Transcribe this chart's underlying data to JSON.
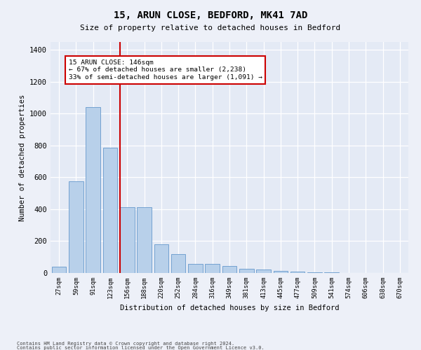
{
  "title": "15, ARUN CLOSE, BEDFORD, MK41 7AD",
  "subtitle": "Size of property relative to detached houses in Bedford",
  "xlabel": "Distribution of detached houses by size in Bedford",
  "ylabel": "Number of detached properties",
  "footnote1": "Contains HM Land Registry data © Crown copyright and database right 2024.",
  "footnote2": "Contains public sector information licensed under the Open Government Licence v3.0.",
  "annotation_line1": "15 ARUN CLOSE: 146sqm",
  "annotation_line2": "← 67% of detached houses are smaller (2,238)",
  "annotation_line3": "33% of semi-detached houses are larger (1,091) →",
  "bar_color": "#b8d0ea",
  "bar_edge_color": "#6699cc",
  "line_color": "#cc0000",
  "categories": [
    "27sqm",
    "59sqm",
    "91sqm",
    "123sqm",
    "156sqm",
    "188sqm",
    "220sqm",
    "252sqm",
    "284sqm",
    "316sqm",
    "349sqm",
    "381sqm",
    "413sqm",
    "445sqm",
    "477sqm",
    "509sqm",
    "541sqm",
    "574sqm",
    "606sqm",
    "638sqm",
    "670sqm"
  ],
  "values": [
    40,
    575,
    1040,
    785,
    415,
    415,
    180,
    120,
    58,
    58,
    42,
    25,
    23,
    15,
    10,
    5,
    5,
    0,
    0,
    0,
    0
  ],
  "ylim": [
    0,
    1450
  ],
  "yticks": [
    0,
    200,
    400,
    600,
    800,
    1000,
    1200,
    1400
  ],
  "vline_x": 3.575,
  "fig_bg": "#edf0f8",
  "ax_bg": "#e4eaf5"
}
